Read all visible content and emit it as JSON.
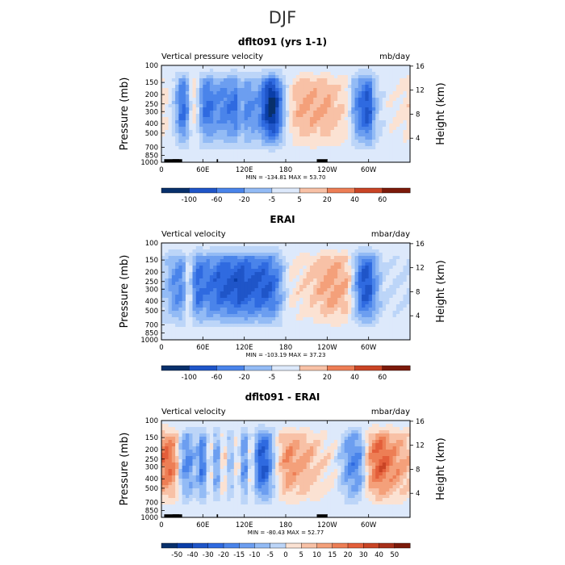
{
  "main_title": "DJF",
  "colors": {
    "diverging": [
      "#08306b",
      "#0a3ea8",
      "#1f55c8",
      "#2f6ae0",
      "#4a84ea",
      "#6c9ef0",
      "#93bbf5",
      "#bcd5f8",
      "#dde9fb",
      "#fbe2d3",
      "#f8c1a6",
      "#f4a07a",
      "#ed7e55",
      "#e35e3a",
      "#c94425",
      "#a8301a",
      "#7c1a0a"
    ]
  },
  "chart_data": [
    {
      "type": "heatmap",
      "title": "dflt091 (yrs 1-1)",
      "left_label": "Vertical pressure velocity",
      "right_label": "mb/day",
      "ylabel": "Pressure (mb)",
      "ylabel_right": "Height (km)",
      "pressure_ticks": [
        "100",
        "150",
        "200",
        "250",
        "300",
        "400",
        "500",
        "700",
        "850",
        "1000"
      ],
      "height_ticks": [
        "16",
        "12",
        "8",
        "4"
      ],
      "x_ticks": [
        "0",
        "60E",
        "120E",
        "180",
        "120W",
        "60W"
      ],
      "stats": "MIN = -134.81   MAX =  53.70",
      "colorbar_labels": [
        "-100",
        "-60",
        "-20",
        "-5",
        "5",
        "20",
        "40",
        "60"
      ],
      "min": -134.81,
      "max": 53.7,
      "profile_lon": [
        0,
        10,
        20,
        30,
        40,
        45,
        55,
        60,
        70,
        80,
        90,
        100,
        110,
        115,
        120,
        130,
        140,
        150,
        160,
        170,
        180,
        190,
        200,
        210,
        220,
        230,
        240,
        250,
        260,
        270,
        280,
        290,
        300,
        310,
        320,
        330,
        340,
        350,
        360
      ],
      "profile_val": [
        15,
        5,
        -20,
        -70,
        -30,
        20,
        -20,
        -55,
        -60,
        -45,
        -50,
        -55,
        -60,
        -20,
        -50,
        -45,
        -40,
        -80,
        -110,
        -70,
        -10,
        20,
        30,
        35,
        35,
        30,
        35,
        25,
        20,
        10,
        -40,
        -60,
        -80,
        -25,
        -5,
        5,
        5,
        10,
        15
      ],
      "terrain": true
    },
    {
      "type": "heatmap",
      "title": "ERAI",
      "left_label": "Vertical velocity",
      "right_label": "mbar/day",
      "ylabel": "Pressure (mb)",
      "ylabel_right": "Height (km)",
      "pressure_ticks": [
        "100",
        "150",
        "200",
        "250",
        "300",
        "400",
        "500",
        "700",
        "850",
        "1000"
      ],
      "height_ticks": [
        "16",
        "12",
        "8",
        "4"
      ],
      "x_ticks": [
        "0",
        "60E",
        "120E",
        "180",
        "120W",
        "60W"
      ],
      "stats": "MIN = -103.19   MAX =  37.23",
      "colorbar_labels": [
        "-100",
        "-60",
        "-20",
        "-5",
        "5",
        "20",
        "40",
        "60"
      ],
      "min": -103.19,
      "max": 37.23,
      "profile_lon": [
        0,
        10,
        20,
        30,
        40,
        45,
        55,
        60,
        70,
        80,
        90,
        100,
        110,
        120,
        130,
        140,
        150,
        160,
        170,
        180,
        190,
        200,
        210,
        220,
        230,
        240,
        250,
        260,
        270,
        280,
        290,
        300,
        310,
        320,
        330,
        340,
        350,
        360
      ],
      "profile_val": [
        -10,
        -20,
        -35,
        -40,
        10,
        -30,
        -55,
        -40,
        -45,
        -50,
        -55,
        -55,
        -60,
        -60,
        -55,
        -55,
        -55,
        -50,
        -35,
        -5,
        8,
        10,
        12,
        18,
        22,
        28,
        30,
        25,
        20,
        -20,
        -55,
        -60,
        -30,
        -10,
        -5,
        -5,
        -5,
        -8
      ],
      "terrain": false
    },
    {
      "type": "heatmap",
      "title": "dflt091 - ERAI",
      "left_label": "Vertical velocity",
      "right_label": "mbar/day",
      "ylabel": "Pressure (mb)",
      "ylabel_right": "Height (km)",
      "pressure_ticks": [
        "100",
        "150",
        "200",
        "250",
        "300",
        "400",
        "500",
        "700",
        "850",
        "1000"
      ],
      "height_ticks": [
        "16",
        "12",
        "8",
        "4"
      ],
      "x_ticks": [
        "0",
        "60E",
        "120E",
        "180",
        "120W",
        "60W"
      ],
      "stats": "MIN = -80.43   MAX =  52.77",
      "colorbar_labels": [
        "-50",
        "-40",
        "-30",
        "-20",
        "-15",
        "-10",
        "-5",
        "0",
        "5",
        "10",
        "15",
        "20",
        "30",
        "40",
        "50"
      ],
      "min": -80.43,
      "max": 52.77,
      "profile_lon": [
        0,
        10,
        20,
        30,
        40,
        50,
        60,
        70,
        80,
        90,
        100,
        110,
        120,
        130,
        140,
        150,
        160,
        170,
        180,
        190,
        200,
        210,
        220,
        230,
        240,
        250,
        260,
        270,
        280,
        290,
        300,
        310,
        320,
        330,
        340,
        350,
        360
      ],
      "profile_val": [
        30,
        35,
        25,
        -20,
        -30,
        -10,
        -40,
        10,
        -30,
        15,
        -20,
        10,
        -35,
        10,
        -40,
        -45,
        -20,
        10,
        25,
        25,
        20,
        20,
        15,
        10,
        8,
        5,
        -10,
        -25,
        -30,
        -20,
        20,
        35,
        40,
        30,
        25,
        20,
        15
      ],
      "terrain": true
    }
  ]
}
